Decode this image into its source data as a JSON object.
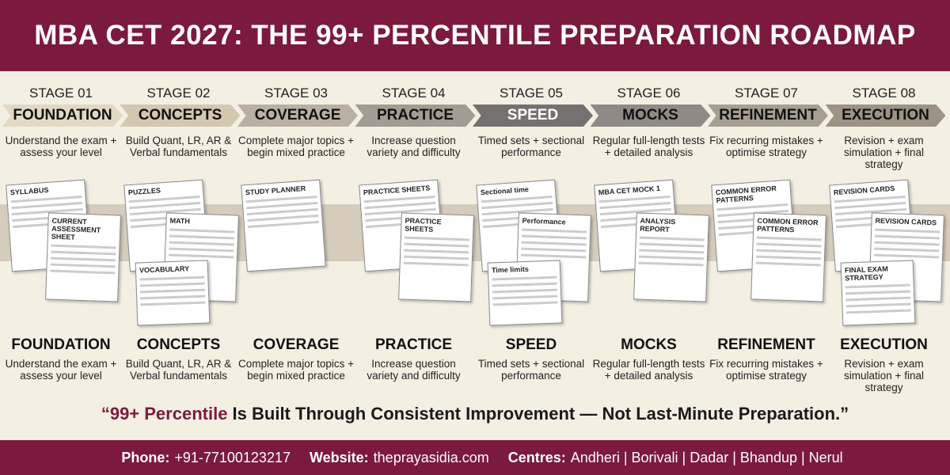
{
  "header": {
    "title": "MBA CET 2027: THE 99+ PERCENTILE PREPARATION ROADMAP"
  },
  "stages": [
    {
      "label": "STAGE 01",
      "name": "FOUNDATION",
      "description": "Understand the exam + assess your level",
      "color": "#e2d8c3",
      "illustration": [
        "SYLLABUS",
        "CURRENT ASSESSMENT SHEET"
      ]
    },
    {
      "label": "STAGE 02",
      "name": "CONCEPTS",
      "description": "Build Quant, LR, AR & Verbal fundamentals",
      "color": "#d3c7b0",
      "illustration": [
        "PUZZLES",
        "MATH",
        "VOCABULARY"
      ]
    },
    {
      "label": "STAGE 03",
      "name": "COVERAGE",
      "description": "Complete major topics + begin mixed practice",
      "color": "#b9b0a2",
      "illustration": [
        "STUDY PLANNER"
      ]
    },
    {
      "label": "STAGE 04",
      "name": "PRACTICE",
      "description": "Increase question variety and difficulty",
      "color": "#a39c92",
      "illustration": [
        "PRACTICE SHEETS",
        "PRACTICE SHEETS"
      ]
    },
    {
      "label": "STAGE 05",
      "name": "SPEED",
      "description": "Timed sets + sectional performance",
      "color": "#747170",
      "illustration": [
        "Sectional time",
        "Performance",
        "Time limits"
      ]
    },
    {
      "label": "STAGE 06",
      "name": "MOCKS",
      "description": "Regular full-length tests + detailed analysis",
      "color": "#8f8a85",
      "illustration": [
        "MBA CET MOCK 1",
        "ANALYSIS REPORT"
      ]
    },
    {
      "label": "STAGE 07",
      "name": "REFINEMENT",
      "description": "Fix recurring mistakes + optimise strategy",
      "color": "#a79e92",
      "illustration": [
        "COMMON ERROR PATTERNS",
        "COMMON ERROR PATTERNS"
      ]
    },
    {
      "label": "STAGE 08",
      "name": "EXECUTION",
      "description": "Revision + exam simulation + final strategy",
      "color": "#9d9384",
      "illustration": [
        "REVISION CARDS",
        "REVISION CARDS",
        "FINAL EXAM STRATEGY"
      ]
    }
  ],
  "quote": {
    "highlight": "“99+ Percentile",
    "rest": " Is Built Through Consistent Improvement — Not Last-Minute Preparation.”"
  },
  "footer": {
    "phone_label": "Phone:",
    "phone": "+91-7710012321​7",
    "website_label": "Website:",
    "website": "theprayasidia.com",
    "centres_label": "Centres:",
    "centres": "Andheri | Borivali | Dadar | Bhandup | Nerul"
  }
}
